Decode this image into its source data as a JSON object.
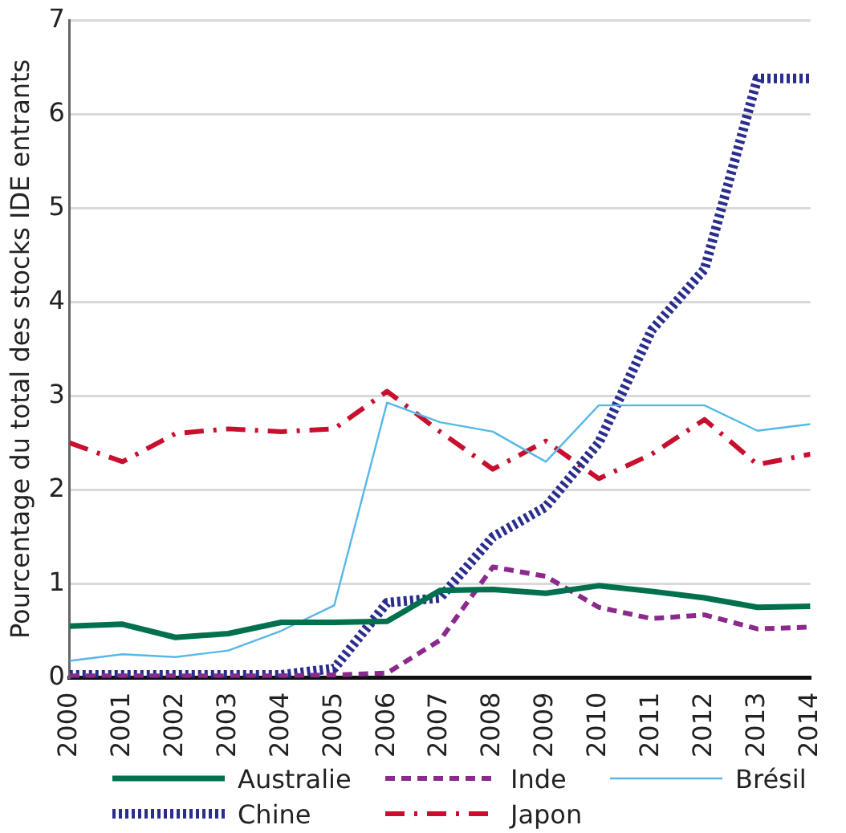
{
  "chart_data": {
    "type": "line",
    "ylabel": "Pourcentage du total des stocks IDE entrants",
    "x": [
      2000,
      2001,
      2002,
      2003,
      2004,
      2005,
      2006,
      2007,
      2008,
      2009,
      2010,
      2011,
      2012,
      2013,
      2014
    ],
    "xlim": [
      2000,
      2014
    ],
    "xticks": [
      2000,
      2001,
      2002,
      2003,
      2004,
      2005,
      2006,
      2007,
      2008,
      2009,
      2010,
      2011,
      2012,
      2013,
      2014
    ],
    "ylim": [
      0,
      7
    ],
    "yticks": [
      0,
      1,
      2,
      3,
      4,
      5,
      6,
      7
    ],
    "grid": "y",
    "legend": "bottom",
    "marker": "none",
    "series": [
      {
        "name": "Australie",
        "color": "#00704f",
        "line_style": "solid",
        "values": [
          0.55,
          0.57,
          0.43,
          0.47,
          0.59,
          0.59,
          0.6,
          0.93,
          0.94,
          0.9,
          0.98,
          0.92,
          0.85,
          0.75,
          0.76
        ]
      },
      {
        "name": "Inde",
        "color": "#8b2a8c",
        "line_style": "dashed",
        "values": [
          0.02,
          0.02,
          0.02,
          0.02,
          0.02,
          0.03,
          0.05,
          0.4,
          1.18,
          1.08,
          0.75,
          0.63,
          0.67,
          0.52,
          0.54
        ]
      },
      {
        "name": "Brésil",
        "color": "#55b8e8",
        "line_style": "solid",
        "values": [
          0.18,
          0.25,
          0.22,
          0.29,
          0.5,
          0.77,
          2.93,
          2.72,
          2.62,
          2.3,
          2.9,
          2.9,
          2.9,
          2.63,
          2.7
        ]
      },
      {
        "name": "Chine",
        "color": "#2b2d8c",
        "line_style": "dotted",
        "values": [
          0.03,
          0.03,
          0.03,
          0.03,
          0.03,
          0.1,
          0.8,
          0.85,
          1.5,
          1.82,
          2.5,
          3.7,
          4.35,
          6.38,
          6.38
        ]
      },
      {
        "name": "Japon",
        "color": "#c8102e",
        "line_style": "dashdot",
        "values": [
          2.5,
          2.3,
          2.6,
          2.65,
          2.62,
          2.65,
          3.05,
          2.62,
          2.22,
          2.52,
          2.12,
          2.38,
          2.75,
          2.27,
          2.38
        ]
      }
    ]
  }
}
